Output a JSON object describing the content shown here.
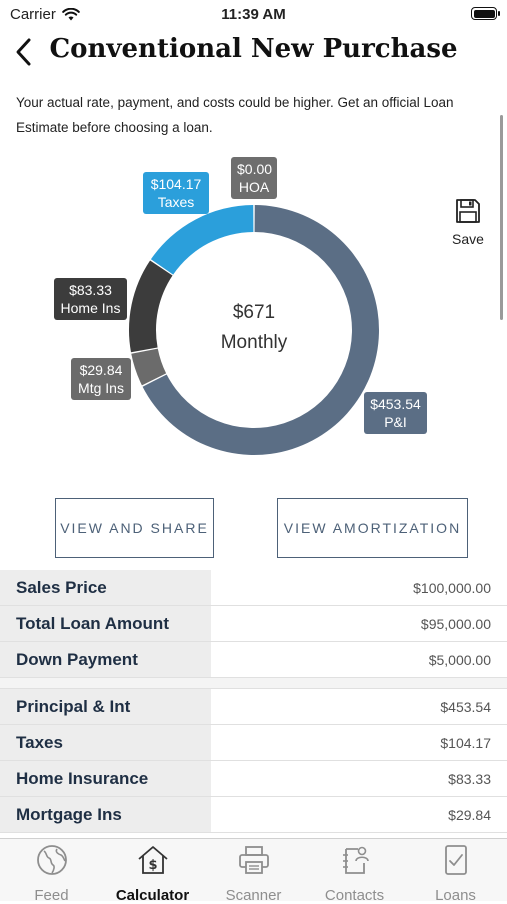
{
  "status": {
    "carrier": "Carrier",
    "time": "11:39 AM"
  },
  "nav": {
    "title": "Conventional New Purchase"
  },
  "disclaimer": "Your actual rate, payment, and costs could be higher. Get an official Loan Estimate before choosing a loan.",
  "chart": {
    "center_amount": "$671",
    "center_label": "Monthly",
    "segments": [
      {
        "amount": "$453.54",
        "label": "P&I",
        "value": 453.54,
        "color": "#5b6e85"
      },
      {
        "amount": "$29.84",
        "label": "Mtg Ins",
        "value": 29.84,
        "color": "#6b6b6b"
      },
      {
        "amount": "$83.33",
        "label": "Home Ins",
        "value": 83.33,
        "color": "#3c3c3c"
      },
      {
        "amount": "$104.17",
        "label": "Taxes",
        "value": 104.17,
        "color": "#2b9fdb"
      },
      {
        "amount": "$0.00",
        "label": "HOA",
        "value": 0.0,
        "color": "#6e6e6e"
      }
    ]
  },
  "save_label": "Save",
  "buttons": {
    "share": "VIEW AND SHARE",
    "amortization": "VIEW AMORTIZATION"
  },
  "loan_rows": [
    {
      "label": "Sales Price",
      "value": "$100,000.00"
    },
    {
      "label": "Total Loan Amount",
      "value": "$95,000.00"
    },
    {
      "label": "Down Payment",
      "value": "$5,000.00"
    }
  ],
  "payment_rows": [
    {
      "label": "Principal & Int",
      "value": "$453.54"
    },
    {
      "label": "Taxes",
      "value": "$104.17"
    },
    {
      "label": "Home Insurance",
      "value": "$83.33"
    },
    {
      "label": "Mortgage Ins",
      "value": "$29.84"
    }
  ],
  "tabs": [
    {
      "label": "Feed",
      "icon": "globe-icon"
    },
    {
      "label": "Calculator",
      "icon": "calculator-house-icon",
      "active": true
    },
    {
      "label": "Scanner",
      "icon": "printer-icon"
    },
    {
      "label": "Contacts",
      "icon": "contacts-icon"
    },
    {
      "label": "Loans",
      "icon": "document-check-icon"
    }
  ]
}
